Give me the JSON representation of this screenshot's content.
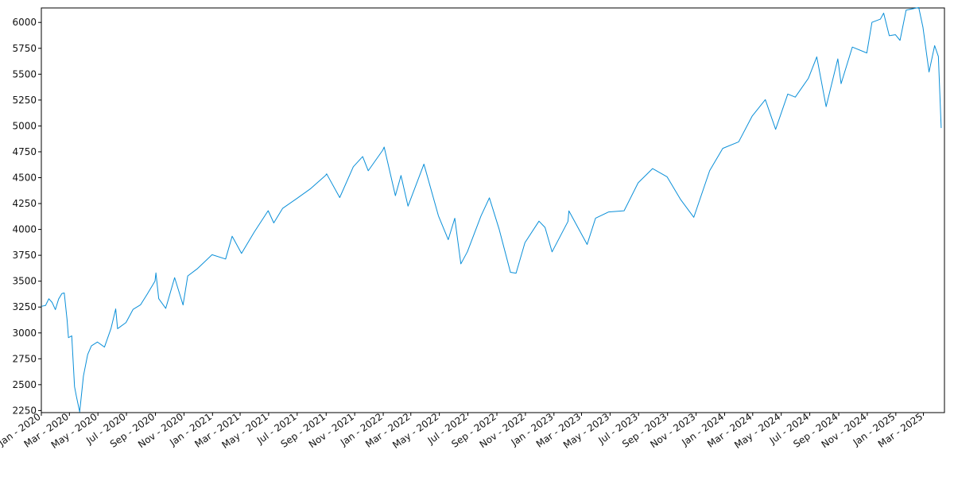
{
  "chart_data": {
    "type": "line",
    "title": "",
    "xlabel": "",
    "ylabel": "",
    "grid": false,
    "legend": "none",
    "line_color": "#0a8fd8",
    "xlim": [
      "2020-01-01",
      "2025-04-15"
    ],
    "ylim": [
      2230,
      6140
    ],
    "y_ticks": [
      2250,
      2500,
      2750,
      3000,
      3250,
      3500,
      3750,
      4000,
      4250,
      4500,
      4750,
      5000,
      5250,
      5500,
      5750,
      6000
    ],
    "x_ticks": [
      {
        "date": "2020-01-01",
        "label": "Jan - 2020"
      },
      {
        "date": "2020-03-01",
        "label": "Mar - 2020"
      },
      {
        "date": "2020-05-01",
        "label": "May - 2020"
      },
      {
        "date": "2020-07-01",
        "label": "Jul - 2020"
      },
      {
        "date": "2020-09-01",
        "label": "Sep - 2020"
      },
      {
        "date": "2020-11-01",
        "label": "Nov - 2020"
      },
      {
        "date": "2021-01-01",
        "label": "Jan - 2021"
      },
      {
        "date": "2021-03-01",
        "label": "Mar - 2021"
      },
      {
        "date": "2021-05-01",
        "label": "May - 2021"
      },
      {
        "date": "2021-07-01",
        "label": "Jul - 2021"
      },
      {
        "date": "2021-09-01",
        "label": "Sep - 2021"
      },
      {
        "date": "2021-11-01",
        "label": "Nov - 2021"
      },
      {
        "date": "2022-01-01",
        "label": "Jan - 2022"
      },
      {
        "date": "2022-03-01",
        "label": "Mar - 2022"
      },
      {
        "date": "2022-05-01",
        "label": "May - 2022"
      },
      {
        "date": "2022-07-01",
        "label": "Jul - 2022"
      },
      {
        "date": "2022-09-01",
        "label": "Sep - 2022"
      },
      {
        "date": "2022-11-01",
        "label": "Nov - 2022"
      },
      {
        "date": "2023-01-01",
        "label": "Jan - 2023"
      },
      {
        "date": "2023-03-01",
        "label": "Mar - 2023"
      },
      {
        "date": "2023-05-01",
        "label": "May - 2023"
      },
      {
        "date": "2023-07-01",
        "label": "Jul - 2023"
      },
      {
        "date": "2023-09-01",
        "label": "Sep - 2023"
      },
      {
        "date": "2023-11-01",
        "label": "Nov - 2023"
      },
      {
        "date": "2024-01-01",
        "label": "Jan - 2024"
      },
      {
        "date": "2024-03-01",
        "label": "Mar - 2024"
      },
      {
        "date": "2024-05-01",
        "label": "May - 2024"
      },
      {
        "date": "2024-07-01",
        "label": "Jul - 2024"
      },
      {
        "date": "2024-09-01",
        "label": "Sep - 2024"
      },
      {
        "date": "2024-11-01",
        "label": "Nov - 2024"
      },
      {
        "date": "2025-01-01",
        "label": "Jan - 2025"
      },
      {
        "date": "2025-03-01",
        "label": "Mar - 2025"
      }
    ],
    "series": [
      {
        "x": [
          "2020-01-02",
          "2020-01-10",
          "2020-01-17",
          "2020-01-24",
          "2020-01-31",
          "2020-02-07",
          "2020-02-14",
          "2020-02-19",
          "2020-02-25",
          "2020-02-28",
          "2020-03-06",
          "2020-03-12",
          "2020-03-16",
          "2020-03-23",
          "2020-03-31",
          "2020-04-09",
          "2020-04-17",
          "2020-04-30",
          "2020-05-15",
          "2020-05-29",
          "2020-06-08",
          "2020-06-12",
          "2020-06-30",
          "2020-07-15",
          "2020-07-31",
          "2020-08-14",
          "2020-08-31",
          "2020-09-02",
          "2020-09-08",
          "2020-09-23",
          "2020-10-12",
          "2020-10-30",
          "2020-11-09",
          "2020-11-30",
          "2020-12-31",
          "2021-01-29",
          "2021-02-12",
          "2021-03-04",
          "2021-03-31",
          "2021-04-30",
          "2021-05-12",
          "2021-05-31",
          "2021-06-30",
          "2021-07-30",
          "2021-08-31",
          "2021-09-02",
          "2021-09-30",
          "2021-10-29",
          "2021-11-18",
          "2021-11-30",
          "2021-12-31",
          "2022-01-03",
          "2022-01-27",
          "2022-02-08",
          "2022-02-23",
          "2022-03-29",
          "2022-04-29",
          "2022-05-20",
          "2022-06-03",
          "2022-06-16",
          "2022-06-30",
          "2022-07-29",
          "2022-08-16",
          "2022-09-06",
          "2022-09-30",
          "2022-10-12",
          "2022-10-31",
          "2022-11-30",
          "2022-12-13",
          "2022-12-28",
          "2023-01-31",
          "2023-02-02",
          "2023-03-13",
          "2023-03-31",
          "2023-04-28",
          "2023-05-31",
          "2023-06-30",
          "2023-07-31",
          "2023-08-31",
          "2023-09-29",
          "2023-10-27",
          "2023-11-30",
          "2023-12-28",
          "2024-01-31",
          "2024-02-29",
          "2024-03-28",
          "2024-04-19",
          "2024-05-15",
          "2024-05-31",
          "2024-06-28",
          "2024-07-16",
          "2024-08-05",
          "2024-08-30",
          "2024-09-06",
          "2024-09-30",
          "2024-10-31",
          "2024-11-11",
          "2024-11-29",
          "2024-12-06",
          "2024-12-18",
          "2024-12-31",
          "2025-01-10",
          "2025-01-23",
          "2025-02-19",
          "2025-02-28",
          "2025-03-13",
          "2025-03-25",
          "2025-04-02",
          "2025-04-08"
        ],
        "y": [
          3258,
          3265,
          3330,
          3295,
          3225,
          3328,
          3380,
          3386,
          3128,
          2954,
          2972,
          2480,
          2386,
          2237,
          2584,
          2790,
          2875,
          2912,
          2863,
          3044,
          3232,
          3041,
          3100,
          3227,
          3271,
          3372,
          3500,
          3580,
          3331,
          3237,
          3534,
          3270,
          3550,
          3622,
          3756,
          3714,
          3934,
          3768,
          3973,
          4181,
          4063,
          4204,
          4298,
          4395,
          4523,
          4537,
          4308,
          4605,
          4704,
          4567,
          4766,
          4796,
          4326,
          4521,
          4225,
          4631,
          4132,
          3901,
          4108,
          3667,
          3785,
          4130,
          4305,
          4000,
          3586,
          3577,
          3872,
          4080,
          4019,
          3783,
          4077,
          4179,
          3855,
          4109,
          4169,
          4180,
          4450,
          4588,
          4508,
          4288,
          4117,
          4568,
          4783,
          4846,
          5096,
          5254,
          4967,
          5308,
          5278,
          5460,
          5667,
          5186,
          5648,
          5408,
          5762,
          5705,
          6001,
          6032,
          6090,
          5872,
          5882,
          5827,
          6119,
          6144,
          5954,
          5521,
          5776,
          5671,
          4983
        ]
      }
    ]
  }
}
